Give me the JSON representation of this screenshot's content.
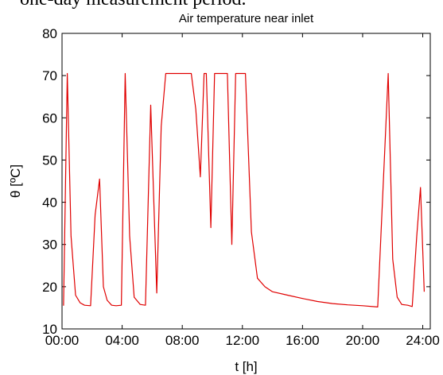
{
  "caption": "one-day measurement period.",
  "chart_data": {
    "type": "line",
    "title": "Air temperature near inlet",
    "xlabel": "t [h]",
    "ylabel": "θ [ºC]",
    "xlim": [
      0,
      24.5
    ],
    "ylim": [
      10,
      80
    ],
    "xticks": [
      0,
      4,
      8,
      12,
      16,
      20,
      24
    ],
    "xtick_labels": [
      "00:00",
      "04:00",
      "08:00",
      "12:00",
      "16:00",
      "20:00",
      "24:00"
    ],
    "yticks": [
      10,
      20,
      30,
      40,
      50,
      60,
      70,
      80
    ],
    "ytick_labels": [
      "10",
      "20",
      "30",
      "40",
      "50",
      "60",
      "70",
      "80"
    ],
    "grid": false,
    "series": [
      {
        "color": "#e00000",
        "x": [
          0.1,
          0.35,
          0.6,
          0.9,
          1.2,
          1.5,
          1.9,
          2.2,
          2.5,
          2.75,
          3.0,
          3.3,
          3.6,
          3.95,
          4.2,
          4.5,
          4.8,
          5.2,
          5.55,
          5.9,
          6.3,
          6.6,
          6.9,
          7.3,
          7.7,
          8.1,
          8.6,
          8.9,
          9.2,
          9.45,
          9.6,
          9.9,
          10.15,
          10.4,
          10.7,
          11.0,
          11.3,
          11.55,
          11.85,
          12.2,
          12.6,
          13.0,
          13.5,
          14.0,
          15.0,
          16.0,
          17.0,
          18.0,
          19.0,
          20.0,
          21.0,
          21.7,
          22.0,
          22.3,
          22.6,
          23.0,
          23.3,
          23.6,
          23.85,
          24.1
        ],
        "y": [
          15.5,
          70.5,
          32.0,
          18.0,
          16.2,
          15.6,
          15.5,
          37.0,
          45.5,
          20.0,
          16.8,
          15.6,
          15.5,
          15.6,
          70.5,
          32.0,
          17.5,
          15.8,
          15.6,
          63.0,
          18.5,
          58.0,
          70.5,
          70.5,
          70.5,
          70.5,
          70.5,
          62.0,
          46.0,
          70.5,
          70.5,
          34.0,
          70.5,
          70.5,
          70.5,
          70.5,
          30.0,
          70.5,
          70.5,
          70.5,
          33.0,
          22.0,
          20.0,
          18.8,
          18.0,
          17.2,
          16.5,
          16.0,
          15.7,
          15.5,
          15.2,
          70.5,
          26.5,
          17.5,
          15.8,
          15.6,
          15.3,
          32.0,
          43.5,
          18.8
        ]
      }
    ]
  }
}
